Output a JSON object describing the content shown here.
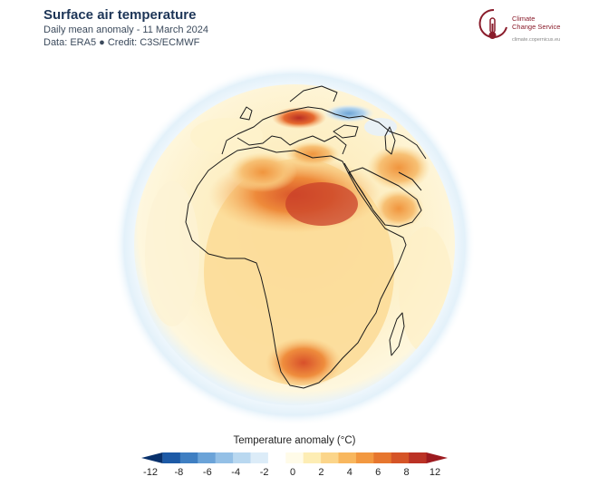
{
  "header": {
    "title": "Surface air temperature",
    "subtitle": "Daily mean anomaly - 11 March 2024",
    "data_line": "Data: ERA5 ● Credit: C3S/ECMWF"
  },
  "logo": {
    "line1": "Climate",
    "line2": "Change Service",
    "url": "climate.copernicus.eu",
    "color": "#8a1c2b"
  },
  "map": {
    "projection": "orthographic",
    "center": "Africa / Europe",
    "variable": "Surface air temperature anomaly",
    "colors": {
      "ocean_halo": "#dbeef8",
      "neutral": "#fdf6d8",
      "warm": "#f5a84a",
      "hot": "#c9362a"
    }
  },
  "legend": {
    "title": "Temperature anomaly (°C)",
    "ticks": [
      "-12",
      "-8",
      "-6",
      "-4",
      "-2",
      "0",
      "2",
      "4",
      "6",
      "8",
      "12"
    ],
    "colors": [
      "#08306b",
      "#1d5aa6",
      "#3f7fc2",
      "#6ba3d8",
      "#94c0e6",
      "#b9d8f0",
      "#dcecf8",
      "#ffffff",
      "#fffbe8",
      "#fdedb4",
      "#fbd58a",
      "#f8b75e",
      "#f29840",
      "#e6762e",
      "#d55427",
      "#bb3225",
      "#9c1a1f"
    ]
  }
}
